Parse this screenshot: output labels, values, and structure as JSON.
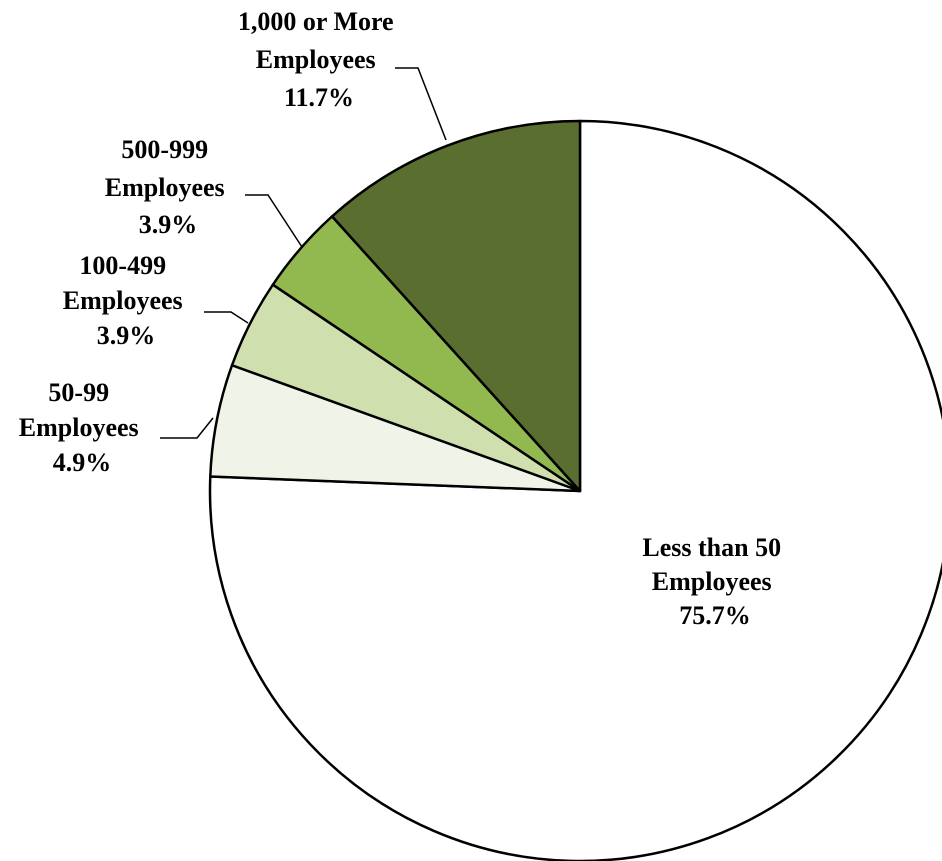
{
  "chart_data": {
    "type": "pie",
    "title": "",
    "start_angle_deg": 0,
    "direction": "clockwise",
    "slices": [
      {
        "label_lines": [
          "Less than 50",
          "Employees"
        ],
        "pct_label": "75.7%",
        "value": 75.7,
        "color": "#ffffff"
      },
      {
        "label_lines": [
          "50-99",
          "Employees"
        ],
        "pct_label": "4.9%",
        "value": 4.9,
        "color": "#f0f4e8"
      },
      {
        "label_lines": [
          "100-499",
          "Employees"
        ],
        "pct_label": "3.9%",
        "value": 3.9,
        "color": "#cfdfae"
      },
      {
        "label_lines": [
          "500-999",
          "Employees"
        ],
        "pct_label": "3.9%",
        "value": 3.9,
        "color": "#92b850"
      },
      {
        "label_lines": [
          "1,000 or More",
          "Employees"
        ],
        "pct_label": "11.7%",
        "value": 11.7,
        "color": "#5a6e30"
      }
    ],
    "border_color": "#000000",
    "leader_line_color": "#000000"
  }
}
